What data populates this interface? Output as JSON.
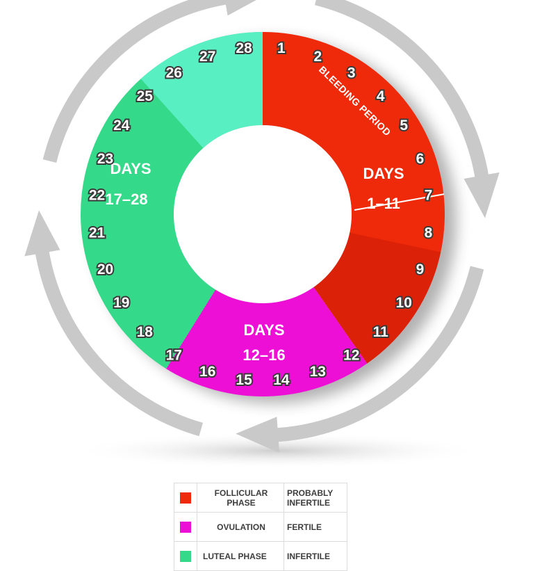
{
  "colors": {
    "follicular": "#ee2a0a",
    "follicular_dark": "#cc1a05",
    "ovulation": "#ee0fd6",
    "luteal": "#35d98a",
    "luteal_light": "#58efc2",
    "arrows": "#c9c9c9"
  },
  "wheel": {
    "days": [
      "1",
      "2",
      "3",
      "4",
      "5",
      "6",
      "7",
      "8",
      "9",
      "10",
      "11",
      "12",
      "13",
      "14",
      "15",
      "16",
      "17",
      "18",
      "19",
      "20",
      "21",
      "22",
      "23",
      "24",
      "25",
      "26",
      "27",
      "28"
    ],
    "bleeding_label": "BLEEDING PERIOD",
    "segments": [
      {
        "line1": "DAYS",
        "line2": "1–11"
      },
      {
        "line1": "DAYS",
        "line2": "12–16"
      },
      {
        "line1": "DAYS",
        "line2": "17–28"
      }
    ]
  },
  "legend": {
    "rows": [
      {
        "color": "#ee2a0a",
        "name_line1": "FOLLICULAR",
        "name_line2": "PHASE",
        "status_line1": "PROBABLY",
        "status_line2": "INFERTILE"
      },
      {
        "color": "#ee0fd6",
        "name_line1": "OVULATION",
        "name_line2": "",
        "status_line1": "FERTILE",
        "status_line2": ""
      },
      {
        "color": "#35d98a",
        "name_line1": "LUTEAL PHASE",
        "name_line2": "",
        "status_line1": "INFERTILE",
        "status_line2": ""
      }
    ]
  }
}
